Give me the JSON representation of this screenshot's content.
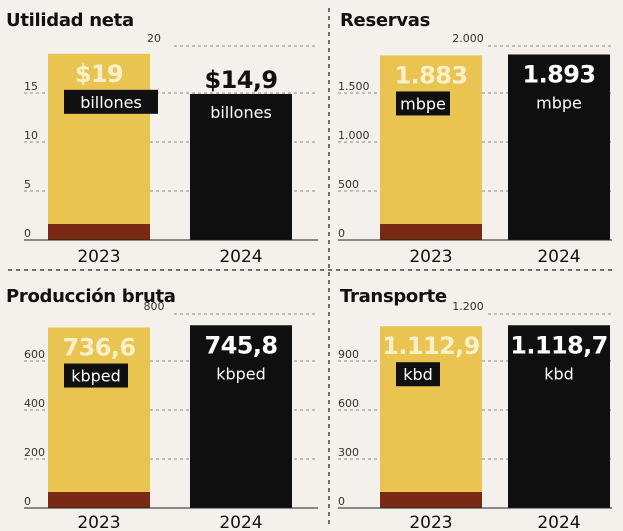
{
  "colors": {
    "bar_2023": "#e9c451",
    "bar_2023_base": "#7a2a14",
    "bar_2024": "#0f0f0f",
    "label_box": "#101010",
    "grid": "#8a8a8a",
    "divider": "#444444"
  },
  "chart_data": [
    {
      "type": "bar",
      "title": "Utilidad neta",
      "categories": [
        "2023",
        "2024"
      ],
      "values": [
        19,
        14.9
      ],
      "value_labels": [
        "$19",
        "$14,9"
      ],
      "unit": "billones",
      "yticks": [
        0,
        5,
        10,
        15,
        20
      ],
      "ytick_labels": [
        "0",
        "5",
        "10",
        "15",
        "20"
      ],
      "ylim": [
        0,
        20
      ],
      "grid": true
    },
    {
      "type": "bar",
      "title": "Reservas",
      "categories": [
        "2023",
        "2024"
      ],
      "values": [
        1883,
        1893
      ],
      "value_labels": [
        "1.883",
        "1.893"
      ],
      "unit": "mbpe",
      "yticks": [
        0,
        500,
        1000,
        1500,
        2000
      ],
      "ytick_labels": [
        "0",
        "500",
        "1.000",
        "1.500",
        "2.000"
      ],
      "ylim": [
        0,
        2000
      ],
      "grid": true
    },
    {
      "type": "bar",
      "title": "Producción bruta",
      "categories": [
        "2023",
        "2024"
      ],
      "values": [
        736.6,
        745.8
      ],
      "value_labels": [
        "736,6",
        "745,8"
      ],
      "unit": "kbped",
      "yticks": [
        0,
        200,
        400,
        600,
        800
      ],
      "ytick_labels": [
        "0",
        "200",
        "400",
        "600",
        "800"
      ],
      "ylim": [
        0,
        800
      ],
      "grid": true
    },
    {
      "type": "bar",
      "title": "Transporte",
      "categories": [
        "2023",
        "2024"
      ],
      "values": [
        1112.9,
        1118.7
      ],
      "value_labels": [
        "1.112,9",
        "1.118,7"
      ],
      "unit": "kbd",
      "yticks": [
        0,
        300,
        600,
        900,
        1200
      ],
      "ytick_labels": [
        "0",
        "300",
        "600",
        "900",
        "1.200"
      ],
      "ylim": [
        0,
        1200
      ],
      "grid": true
    }
  ]
}
